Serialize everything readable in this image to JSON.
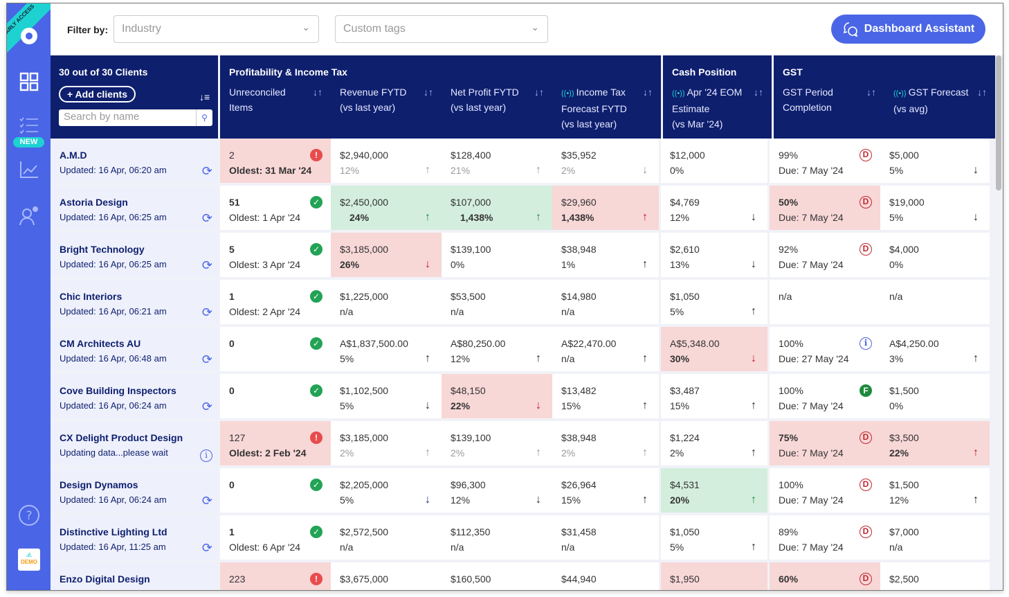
{
  "sidebar": {
    "ribbon": "EARLY ACCESS",
    "items": [
      {
        "icon": "dashboard-grid-icon"
      },
      {
        "icon": "checklist-icon",
        "badge": "NEW"
      },
      {
        "icon": "chart-line-icon"
      },
      {
        "icon": "user-settings-icon"
      }
    ],
    "help_icon": "help-icon",
    "org_logo": "DEMO"
  },
  "topbar": {
    "filter_label": "Filter by:",
    "industry_placeholder": "Industry",
    "tags_placeholder": "Custom tags",
    "assistant_label": "Dashboard Assistant"
  },
  "header": {
    "clients_count": "30 out of 30 Clients",
    "add_clients": "Add clients",
    "search_placeholder": "Search by name",
    "groups": [
      {
        "title": "Profitability & Income Tax",
        "cols": [
          {
            "lines": [
              "Unreconciled",
              "Items"
            ]
          },
          {
            "lines": [
              "Revenue FYTD",
              "(vs last year)"
            ]
          },
          {
            "lines": [
              "Net Profit FYTD",
              "(vs last year)"
            ]
          },
          {
            "lines": [
              "Income Tax",
              "Forecast FYTD",
              "(vs last year)"
            ],
            "live": true
          }
        ]
      },
      {
        "title": "Cash Position",
        "cols": [
          {
            "lines": [
              "Apr '24 EOM",
              "Estimate",
              "(vs Mar '24)"
            ],
            "live": true
          }
        ]
      },
      {
        "title": "GST",
        "cols": [
          {
            "lines": [
              "GST Period",
              "Completion"
            ]
          },
          {
            "lines": [
              "GST Forecast",
              "(vs avg)"
            ],
            "live": true
          }
        ]
      }
    ]
  },
  "rows": [
    {
      "name": "A.M.D",
      "updated": "Updated: 16 Apr, 06:20 am",
      "icon": "refresh",
      "unrec": {
        "v": "2",
        "sub": "Oldest: 31 Mar '24",
        "status": "err",
        "bg": "red"
      },
      "rev": {
        "v": "$2,940,000",
        "sub": "12%",
        "arrow": "up",
        "tone": "grey"
      },
      "np": {
        "v": "$128,400",
        "sub": "21%",
        "arrow": "up",
        "tone": "grey"
      },
      "tax": {
        "v": "$35,952",
        "sub": "2%",
        "arrow": "down",
        "tone": "grey"
      },
      "cash": {
        "v": "$12,000",
        "sub": "0%"
      },
      "gstp": {
        "v": "99%",
        "sub": "Due: 7 May '24",
        "status": "D"
      },
      "gstf": {
        "v": "$5,000",
        "sub": "5%",
        "arrow": "down",
        "tone": "black"
      }
    },
    {
      "name": "Astoria Design",
      "updated": "Updated: 16 Apr, 06:25 am",
      "icon": "refresh",
      "unrec": {
        "v": "51",
        "sub": "Oldest: 1 Apr '24",
        "status": "ok",
        "boldv": true
      },
      "rev": {
        "v": "$2,450,000",
        "sub": "24%",
        "arrow": "up",
        "tone": "green",
        "bg": "green"
      },
      "np": {
        "v": "$107,000",
        "sub": "1,438%",
        "arrow": "up",
        "tone": "green",
        "bg": "green"
      },
      "tax": {
        "v": "$29,960",
        "sub": "1,438%",
        "arrow": "up",
        "tone": "red",
        "bg": "red"
      },
      "cash": {
        "v": "$4,769",
        "sub": "12%",
        "arrow": "down",
        "tone": "black"
      },
      "gstp": {
        "v": "50%",
        "sub": "Due: 7 May '24",
        "status": "D",
        "bg": "red"
      },
      "gstf": {
        "v": "$19,000",
        "sub": "5%",
        "arrow": "down",
        "tone": "black"
      }
    },
    {
      "name": "Bright Technology",
      "updated": "Updated: 16 Apr, 06:25 am",
      "icon": "refresh",
      "unrec": {
        "v": "5",
        "sub": "Oldest: 3 Apr '24",
        "status": "ok",
        "boldv": true
      },
      "rev": {
        "v": "$3,185,000",
        "sub": "26%",
        "arrow": "down",
        "tone": "red",
        "bg": "red"
      },
      "np": {
        "v": "$139,100",
        "sub": "0%"
      },
      "tax": {
        "v": "$38,948",
        "sub": "1%",
        "arrow": "up",
        "tone": "black"
      },
      "cash": {
        "v": "$2,610",
        "sub": "13%",
        "arrow": "down",
        "tone": "black"
      },
      "gstp": {
        "v": "92%",
        "sub": "Due: 7 May '24",
        "status": "D"
      },
      "gstf": {
        "v": "$4,000",
        "sub": "0%"
      }
    },
    {
      "name": "Chic Interiors",
      "updated": "Updated: 16 Apr, 06:21 am",
      "icon": "refresh",
      "unrec": {
        "v": "1",
        "sub": "Oldest: 2 Apr '24",
        "status": "ok",
        "boldv": true
      },
      "rev": {
        "v": "$1,225,000",
        "sub": "n/a"
      },
      "np": {
        "v": "$53,500",
        "sub": "n/a"
      },
      "tax": {
        "v": "$14,980",
        "sub": "n/a"
      },
      "cash": {
        "v": "$1,050",
        "sub": "5%",
        "arrow": "up",
        "tone": "black"
      },
      "gstp": {
        "v": "n/a",
        "sub": ""
      },
      "gstf": {
        "v": "n/a",
        "sub": ""
      }
    },
    {
      "name": "CM Architects AU",
      "updated": "Updated: 16 Apr, 06:48 am",
      "icon": "refresh",
      "unrec": {
        "v": "0",
        "sub": "",
        "status": "ok",
        "boldv": true
      },
      "rev": {
        "v": "A$1,837,500.00",
        "sub": "5%",
        "arrow": "up",
        "tone": "black"
      },
      "np": {
        "v": "A$80,250.00",
        "sub": "12%",
        "arrow": "up",
        "tone": "black"
      },
      "tax": {
        "v": "A$22,470.00",
        "sub": "n/a",
        "arrow": "up",
        "tone": "black"
      },
      "cash": {
        "v": "A$5,348.00",
        "sub": "30%",
        "arrow": "down",
        "tone": "red",
        "bg": "red"
      },
      "gstp": {
        "v": "100%",
        "sub": "Due: 27 May '24",
        "status": "i"
      },
      "gstf": {
        "v": "A$4,250.00",
        "sub": "3%",
        "arrow": "up",
        "tone": "black"
      }
    },
    {
      "name": "Cove Building Inspectors",
      "updated": "Updated: 16 Apr, 06:24 am",
      "icon": "refresh",
      "unrec": {
        "v": "0",
        "sub": "",
        "status": "ok",
        "boldv": true
      },
      "rev": {
        "v": "$1,102,500",
        "sub": "5%",
        "arrow": "down",
        "tone": "black"
      },
      "np": {
        "v": "$48,150",
        "sub": "22%",
        "arrow": "down",
        "tone": "red",
        "bg": "red"
      },
      "tax": {
        "v": "$13,482",
        "sub": "15%",
        "arrow": "up",
        "tone": "black"
      },
      "cash": {
        "v": "$3,487",
        "sub": "15%",
        "arrow": "up",
        "tone": "black"
      },
      "gstp": {
        "v": "100%",
        "sub": "Due: 7 May '24",
        "status": "F"
      },
      "gstf": {
        "v": "$1,500",
        "sub": "0%"
      }
    },
    {
      "name": "CX Delight Product Design",
      "updated": "Updating data...please wait",
      "icon": "info",
      "unrec": {
        "v": "127",
        "sub": "Oldest: 2 Feb '24",
        "status": "err",
        "bg": "red"
      },
      "rev": {
        "v": "$3,185,000",
        "sub": "2%",
        "arrow": "up",
        "tone": "grey"
      },
      "np": {
        "v": "$139,100",
        "sub": "2%",
        "arrow": "up",
        "tone": "grey"
      },
      "tax": {
        "v": "$38,948",
        "sub": "2%",
        "arrow": "up",
        "tone": "grey"
      },
      "cash": {
        "v": "$1,224",
        "sub": "2%",
        "arrow": "up",
        "tone": "black"
      },
      "gstp": {
        "v": "75%",
        "sub": "Due: 7 May '24",
        "status": "D",
        "bg": "red"
      },
      "gstf": {
        "v": "$3,500",
        "sub": "22%",
        "arrow": "up",
        "tone": "red",
        "bg": "red"
      }
    },
    {
      "name": "Design Dynamos",
      "updated": "Updated: 16 Apr, 06:24 am",
      "icon": "refresh",
      "unrec": {
        "v": "0",
        "sub": "",
        "status": "ok",
        "boldv": true
      },
      "rev": {
        "v": "$2,205,000",
        "sub": "5%",
        "arrow": "down",
        "tone": "navy"
      },
      "np": {
        "v": "$96,300",
        "sub": "12%",
        "arrow": "down",
        "tone": "black"
      },
      "tax": {
        "v": "$26,964",
        "sub": "15%",
        "arrow": "up",
        "tone": "black"
      },
      "cash": {
        "v": "$4,531",
        "sub": "20%",
        "arrow": "up",
        "tone": "green",
        "bg": "green"
      },
      "gstp": {
        "v": "100%",
        "sub": "Due: 7 May '24",
        "status": "D"
      },
      "gstf": {
        "v": "$1,500",
        "sub": "12%",
        "arrow": "up",
        "tone": "black"
      }
    },
    {
      "name": "Distinctive Lighting Ltd",
      "updated": "Updated: 16 Apr, 11:25 am",
      "icon": "refresh",
      "unrec": {
        "v": "1",
        "sub": "Oldest: 6 Apr '24",
        "status": "ok",
        "boldv": true
      },
      "rev": {
        "v": "$2,572,500",
        "sub": "n/a"
      },
      "np": {
        "v": "$112,350",
        "sub": "n/a"
      },
      "tax": {
        "v": "$31,458",
        "sub": "n/a"
      },
      "cash": {
        "v": "$1,050",
        "sub": "5%",
        "arrow": "up",
        "tone": "black"
      },
      "gstp": {
        "v": "89%",
        "sub": "Due: 7 May '24",
        "status": "D"
      },
      "gstf": {
        "v": "$7,000",
        "sub": "n/a"
      }
    },
    {
      "name": "Enzo Digital Design",
      "updated": "",
      "icon": "",
      "unrec": {
        "v": "223",
        "sub": "",
        "status": "err",
        "bg": "red"
      },
      "rev": {
        "v": "$3,675,000",
        "sub": ""
      },
      "np": {
        "v": "$160,500",
        "sub": ""
      },
      "tax": {
        "v": "$44,940",
        "sub": ""
      },
      "cash": {
        "v": "$1,950",
        "sub": "",
        "bg": "red"
      },
      "gstp": {
        "v": "60%",
        "sub": "",
        "status": "D",
        "bg": "red"
      },
      "gstf": {
        "v": "$2,500",
        "sub": ""
      }
    }
  ],
  "colors": {
    "accent": "#4a66e6",
    "header": "#0e1f6e",
    "negative_bg": "#f8d7d7",
    "positive_bg": "#d4eedd"
  }
}
